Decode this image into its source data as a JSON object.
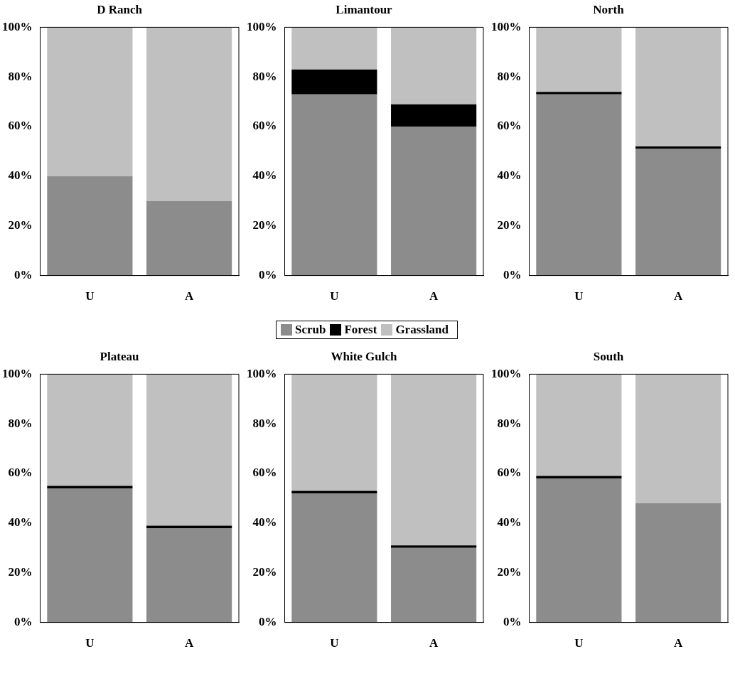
{
  "chart_data": [
    {
      "type": "bar",
      "title": "D Ranch",
      "categories": [
        "U",
        "A"
      ],
      "stacked": true,
      "ylim": [
        0,
        100
      ],
      "yticks": [
        {
          "value": 0,
          "label": "0%"
        },
        {
          "value": 20,
          "label": "20%"
        },
        {
          "value": 40,
          "label": "40%"
        },
        {
          "value": 60,
          "label": "60%"
        },
        {
          "value": 80,
          "label": "80%"
        },
        {
          "value": 100,
          "label": "100%"
        }
      ],
      "grid": false,
      "series": [
        {
          "color": "#8c8c8c",
          "values": [
            40,
            30
          ]
        },
        {
          "color": "#000000",
          "values": [
            0,
            0
          ]
        },
        {
          "color": "#c0c0c0",
          "values": [
            60,
            70
          ]
        }
      ]
    },
    {
      "type": "bar",
      "title": "Limantour",
      "categories": [
        "U",
        "A"
      ],
      "stacked": true,
      "legend": "bottom",
      "ylim": [
        0,
        100
      ],
      "yticks": [
        {
          "value": 0,
          "label": "0%"
        },
        {
          "value": 20,
          "label": "20%"
        },
        {
          "value": 40,
          "label": "40%"
        },
        {
          "value": 60,
          "label": "60%"
        },
        {
          "value": 80,
          "label": "80%"
        },
        {
          "value": 100,
          "label": "100%"
        }
      ],
      "grid": false,
      "series": [
        {
          "name": "Scrub",
          "color": "#8c8c8c",
          "values": [
            73,
            60
          ]
        },
        {
          "name": "Forest",
          "color": "#000000",
          "values": [
            10,
            9
          ]
        },
        {
          "name": "Grassland",
          "color": "#c0c0c0",
          "values": [
            17,
            31
          ]
        }
      ]
    },
    {
      "type": "bar",
      "title": "North",
      "categories": [
        "U",
        "A"
      ],
      "stacked": true,
      "ylim": [
        0,
        100
      ],
      "yticks": [
        {
          "value": 0,
          "label": "0%"
        },
        {
          "value": 20,
          "label": "20%"
        },
        {
          "value": 40,
          "label": "40%"
        },
        {
          "value": 60,
          "label": "60%"
        },
        {
          "value": 80,
          "label": "80%"
        },
        {
          "value": 100,
          "label": "100%"
        }
      ],
      "grid": false,
      "series": [
        {
          "color": "#8c8c8c",
          "values": [
            73,
            51
          ]
        },
        {
          "color": "#000000",
          "values": [
            1,
            1
          ]
        },
        {
          "color": "#c0c0c0",
          "values": [
            26,
            48
          ]
        }
      ]
    },
    {
      "type": "bar",
      "title": "Plateau",
      "categories": [
        "U",
        "A"
      ],
      "stacked": true,
      "ylim": [
        0,
        100
      ],
      "yticks": [
        {
          "value": 0,
          "label": "0%"
        },
        {
          "value": 20,
          "label": "20%"
        },
        {
          "value": 40,
          "label": "40%"
        },
        {
          "value": 60,
          "label": "60%"
        },
        {
          "value": 80,
          "label": "80%"
        },
        {
          "value": 100,
          "label": "100%"
        }
      ],
      "grid": false,
      "series": [
        {
          "color": "#8c8c8c",
          "values": [
            54,
            38
          ]
        },
        {
          "color": "#000000",
          "values": [
            1,
            1
          ]
        },
        {
          "color": "#c0c0c0",
          "values": [
            45,
            61
          ]
        }
      ]
    },
    {
      "type": "bar",
      "title": "White Gulch",
      "categories": [
        "U",
        "A"
      ],
      "stacked": true,
      "ylim": [
        0,
        100
      ],
      "yticks": [
        {
          "value": 0,
          "label": "0%"
        },
        {
          "value": 20,
          "label": "20%"
        },
        {
          "value": 40,
          "label": "40%"
        },
        {
          "value": 60,
          "label": "60%"
        },
        {
          "value": 80,
          "label": "80%"
        },
        {
          "value": 100,
          "label": "100%"
        }
      ],
      "grid": false,
      "series": [
        {
          "color": "#8c8c8c",
          "values": [
            52,
            30
          ]
        },
        {
          "color": "#000000",
          "values": [
            1,
            1
          ]
        },
        {
          "color": "#c0c0c0",
          "values": [
            47,
            69
          ]
        }
      ]
    },
    {
      "type": "bar",
      "title": "South",
      "categories": [
        "U",
        "A"
      ],
      "stacked": true,
      "ylim": [
        0,
        100
      ],
      "yticks": [
        {
          "value": 0,
          "label": "0%"
        },
        {
          "value": 20,
          "label": "20%"
        },
        {
          "value": 40,
          "label": "40%"
        },
        {
          "value": 60,
          "label": "60%"
        },
        {
          "value": 80,
          "label": "80%"
        },
        {
          "value": 100,
          "label": "100%"
        }
      ],
      "grid": false,
      "series": [
        {
          "color": "#8c8c8c",
          "values": [
            58,
            48
          ]
        },
        {
          "color": "#000000",
          "values": [
            1,
            0
          ]
        },
        {
          "color": "#c0c0c0",
          "values": [
            41,
            52
          ]
        }
      ]
    }
  ]
}
